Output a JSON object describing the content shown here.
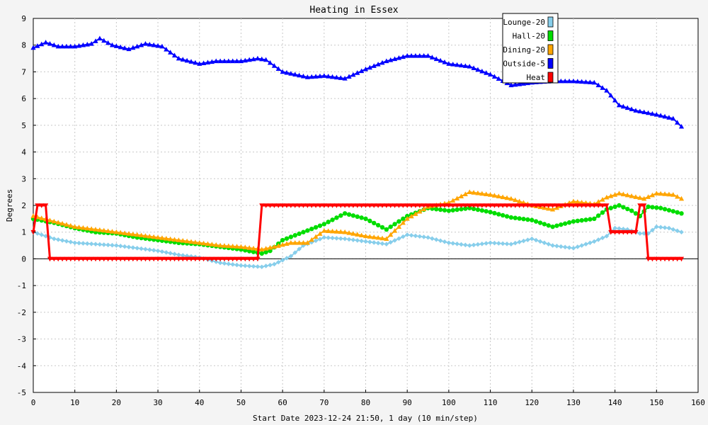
{
  "chart_data": {
    "type": "line",
    "title": "Heating in Essex",
    "xlabel": "Start Date 2023-12-24 21:50, 1 day (10 min/step)",
    "ylabel": "Degrees",
    "xlim": [
      0,
      160
    ],
    "ylim": [
      -5,
      9
    ],
    "xticks": [
      0,
      10,
      20,
      30,
      40,
      50,
      60,
      70,
      80,
      90,
      100,
      110,
      120,
      130,
      140,
      150,
      160
    ],
    "yticks": [
      -5,
      -4,
      -3,
      -2,
      -1,
      0,
      1,
      2,
      3,
      4,
      5,
      6,
      7,
      8,
      9
    ],
    "grid": true,
    "legend_position": "top-right",
    "series": [
      {
        "name": "Lounge-20",
        "color": "#87ceeb",
        "marker": "diamond",
        "points": [
          [
            0,
            1.0
          ],
          [
            5,
            0.75
          ],
          [
            10,
            0.6
          ],
          [
            15,
            0.55
          ],
          [
            20,
            0.5
          ],
          [
            25,
            0.4
          ],
          [
            30,
            0.3
          ],
          [
            35,
            0.15
          ],
          [
            40,
            0.05
          ],
          [
            45,
            -0.15
          ],
          [
            50,
            -0.25
          ],
          [
            55,
            -0.3
          ],
          [
            58,
            -0.2
          ],
          [
            62,
            0.1
          ],
          [
            65,
            0.5
          ],
          [
            70,
            0.8
          ],
          [
            75,
            0.75
          ],
          [
            80,
            0.65
          ],
          [
            85,
            0.55
          ],
          [
            90,
            0.9
          ],
          [
            95,
            0.8
          ],
          [
            100,
            0.6
          ],
          [
            105,
            0.5
          ],
          [
            110,
            0.6
          ],
          [
            115,
            0.55
          ],
          [
            120,
            0.75
          ],
          [
            125,
            0.5
          ],
          [
            130,
            0.4
          ],
          [
            135,
            0.65
          ],
          [
            138,
            0.85
          ],
          [
            140,
            1.15
          ],
          [
            143,
            1.1
          ],
          [
            146,
            0.95
          ],
          [
            148,
            0.95
          ],
          [
            150,
            1.2
          ],
          [
            153,
            1.15
          ],
          [
            156,
            1.0
          ]
        ]
      },
      {
        "name": "Hall-20",
        "color": "#00dd00",
        "marker": "circle",
        "points": [
          [
            0,
            1.5
          ],
          [
            5,
            1.35
          ],
          [
            10,
            1.15
          ],
          [
            15,
            1.0
          ],
          [
            20,
            0.95
          ],
          [
            25,
            0.8
          ],
          [
            30,
            0.7
          ],
          [
            35,
            0.6
          ],
          [
            40,
            0.55
          ],
          [
            45,
            0.45
          ],
          [
            50,
            0.35
          ],
          [
            55,
            0.2
          ],
          [
            57,
            0.3
          ],
          [
            60,
            0.7
          ],
          [
            65,
            1.0
          ],
          [
            70,
            1.3
          ],
          [
            75,
            1.7
          ],
          [
            80,
            1.5
          ],
          [
            85,
            1.1
          ],
          [
            90,
            1.6
          ],
          [
            95,
            1.9
          ],
          [
            100,
            1.8
          ],
          [
            105,
            1.9
          ],
          [
            110,
            1.75
          ],
          [
            115,
            1.55
          ],
          [
            120,
            1.45
          ],
          [
            125,
            1.2
          ],
          [
            130,
            1.4
          ],
          [
            135,
            1.5
          ],
          [
            138,
            1.85
          ],
          [
            141,
            2.0
          ],
          [
            144,
            1.8
          ],
          [
            146,
            1.6
          ],
          [
            148,
            1.95
          ],
          [
            151,
            1.9
          ],
          [
            156,
            1.7
          ]
        ]
      },
      {
        "name": "Dining-20",
        "color": "#ffa500",
        "marker": "triangle",
        "points": [
          [
            0,
            1.6
          ],
          [
            5,
            1.4
          ],
          [
            10,
            1.2
          ],
          [
            15,
            1.1
          ],
          [
            20,
            1.0
          ],
          [
            25,
            0.9
          ],
          [
            30,
            0.8
          ],
          [
            35,
            0.7
          ],
          [
            40,
            0.6
          ],
          [
            45,
            0.5
          ],
          [
            50,
            0.45
          ],
          [
            55,
            0.35
          ],
          [
            58,
            0.45
          ],
          [
            62,
            0.6
          ],
          [
            66,
            0.6
          ],
          [
            70,
            1.05
          ],
          [
            75,
            1.0
          ],
          [
            80,
            0.85
          ],
          [
            85,
            0.75
          ],
          [
            90,
            1.5
          ],
          [
            95,
            1.95
          ],
          [
            100,
            2.1
          ],
          [
            105,
            2.5
          ],
          [
            110,
            2.4
          ],
          [
            115,
            2.25
          ],
          [
            120,
            2.0
          ],
          [
            125,
            1.85
          ],
          [
            130,
            2.15
          ],
          [
            135,
            2.05
          ],
          [
            138,
            2.3
          ],
          [
            141,
            2.45
          ],
          [
            144,
            2.35
          ],
          [
            147,
            2.25
          ],
          [
            150,
            2.45
          ],
          [
            154,
            2.4
          ],
          [
            156,
            2.25
          ]
        ]
      },
      {
        "name": "Outside-5",
        "color": "#0000ff",
        "marker": "triangle",
        "points": [
          [
            0,
            7.9
          ],
          [
            3,
            8.1
          ],
          [
            6,
            7.95
          ],
          [
            10,
            7.95
          ],
          [
            14,
            8.05
          ],
          [
            16,
            8.25
          ],
          [
            19,
            8.0
          ],
          [
            23,
            7.85
          ],
          [
            27,
            8.05
          ],
          [
            31,
            7.95
          ],
          [
            35,
            7.5
          ],
          [
            40,
            7.3
          ],
          [
            44,
            7.4
          ],
          [
            50,
            7.4
          ],
          [
            54,
            7.5
          ],
          [
            56,
            7.45
          ],
          [
            60,
            7.0
          ],
          [
            66,
            6.8
          ],
          [
            70,
            6.85
          ],
          [
            75,
            6.75
          ],
          [
            80,
            7.1
          ],
          [
            85,
            7.4
          ],
          [
            90,
            7.6
          ],
          [
            95,
            7.6
          ],
          [
            100,
            7.3
          ],
          [
            105,
            7.2
          ],
          [
            110,
            6.9
          ],
          [
            115,
            6.5
          ],
          [
            120,
            6.6
          ],
          [
            125,
            6.65
          ],
          [
            130,
            6.65
          ],
          [
            135,
            6.6
          ],
          [
            138,
            6.3
          ],
          [
            141,
            5.75
          ],
          [
            145,
            5.55
          ],
          [
            150,
            5.4
          ],
          [
            154,
            5.25
          ],
          [
            156,
            4.95
          ]
        ]
      },
      {
        "name": "Heat",
        "color": "#ff0000",
        "marker": "inverted-triangle",
        "points": [
          [
            0,
            1.0
          ],
          [
            1,
            2.0
          ],
          [
            3,
            2.0
          ],
          [
            4,
            0.0
          ],
          [
            54,
            0.0
          ],
          [
            55,
            2.0
          ],
          [
            138,
            2.0
          ],
          [
            139,
            1.0
          ],
          [
            145,
            1.0
          ],
          [
            146,
            2.0
          ],
          [
            147,
            2.0
          ],
          [
            148,
            0.0
          ],
          [
            156,
            0.0
          ]
        ]
      }
    ]
  }
}
